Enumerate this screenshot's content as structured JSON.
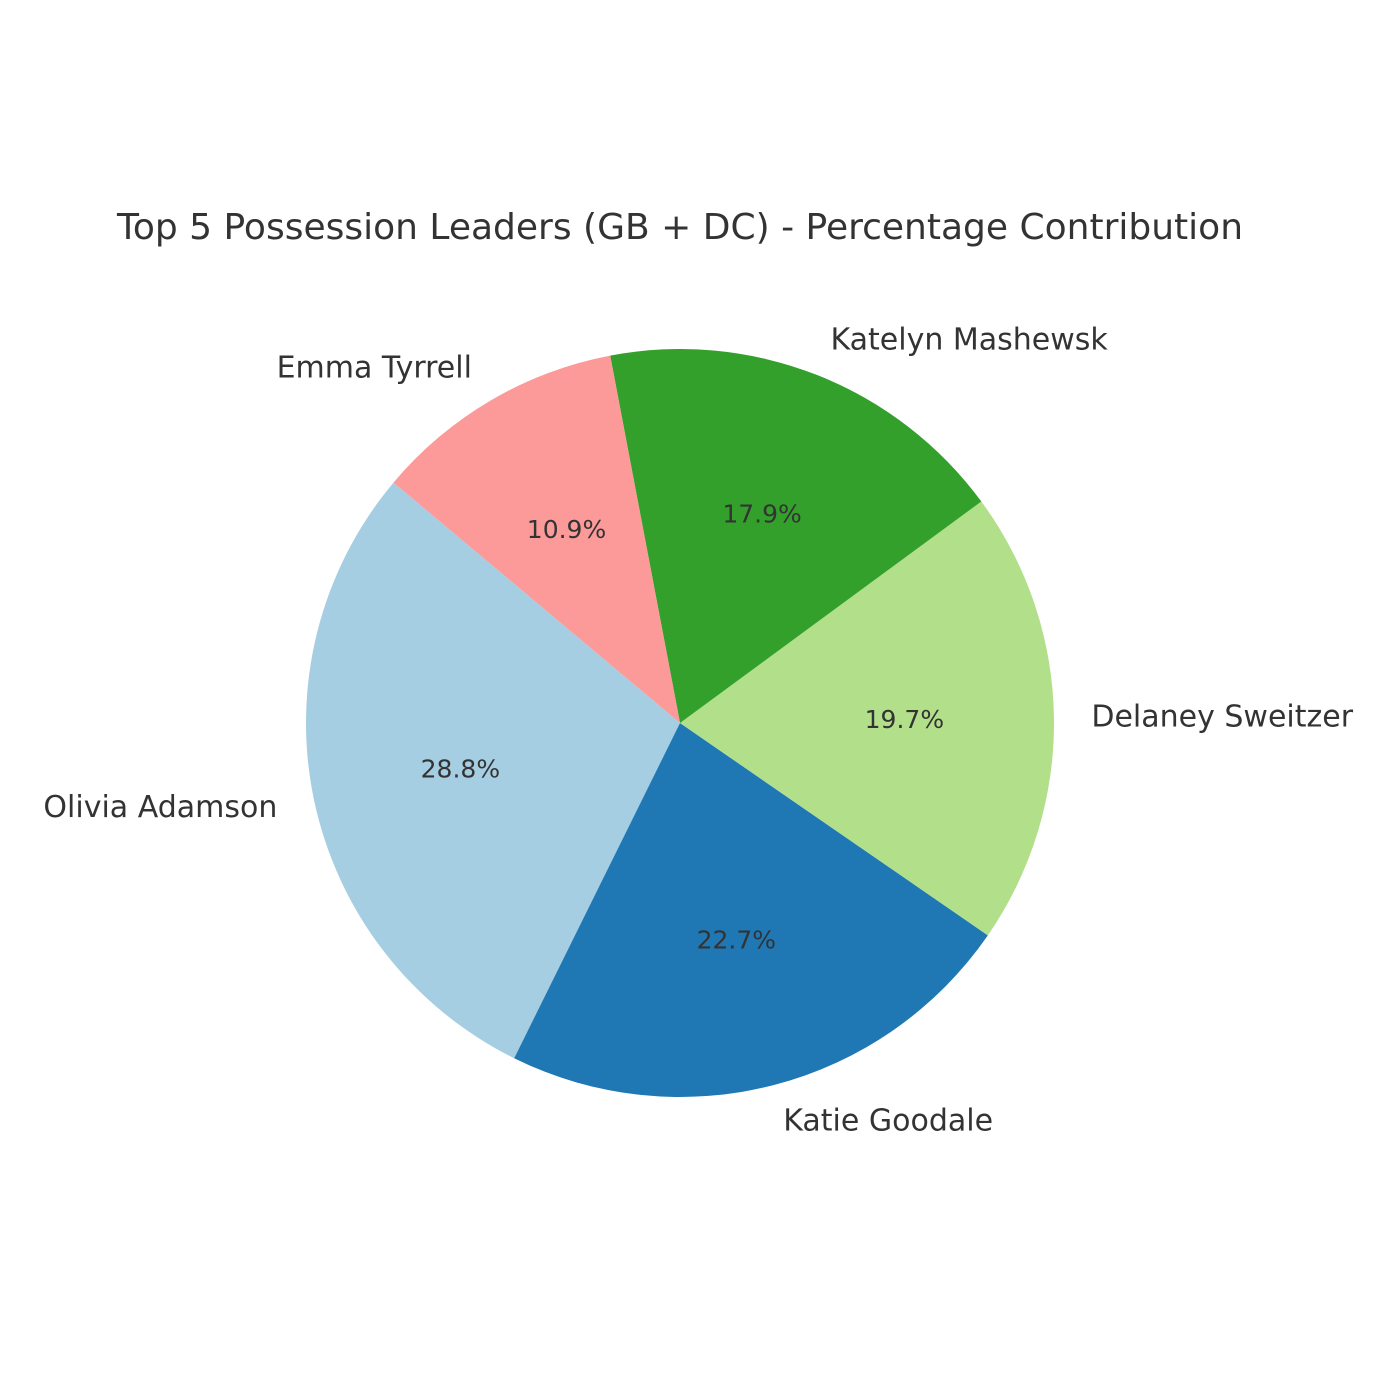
{
  "chart_data": {
    "type": "pie",
    "title": "Top 5 Possession Leaders (GB + DC) - Percentage Contribution",
    "labels": [
      "Olivia Adamson",
      "Katie Goodale",
      "Delaney Sweitzer",
      "Katelyn Mashewsk",
      "Emma Tyrrell"
    ],
    "values": [
      28.8,
      22.7,
      19.7,
      17.9,
      10.9
    ],
    "percent_labels": [
      "28.8%",
      "22.7%",
      "19.7%",
      "17.9%",
      "10.9%"
    ],
    "colors": [
      "#a6cee3",
      "#1f78b4",
      "#b2df8a",
      "#33a02c",
      "#fb9a99"
    ],
    "start_angle_deg": 140,
    "direction": "counterclockwise",
    "legend": "none"
  }
}
